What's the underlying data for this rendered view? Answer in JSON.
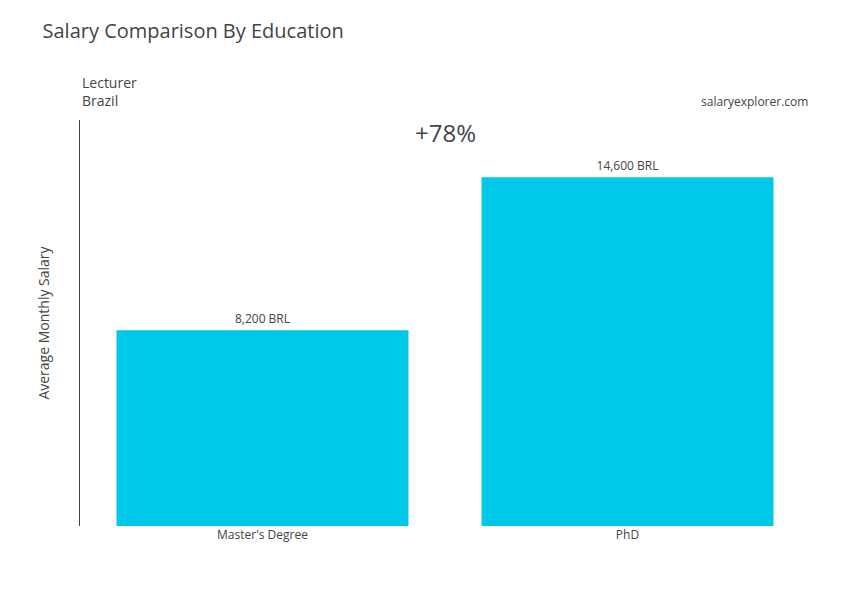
{
  "chart_data": {
    "type": "bar",
    "title": "Salary Comparison By Education",
    "subtitle": [
      "Lecturer",
      "Brazil"
    ],
    "ylabel": "Average Monthly Salary",
    "categories": [
      "Master's Degree",
      "PhD"
    ],
    "values": [
      8200,
      14600
    ],
    "value_labels": [
      "8,200 BRL",
      "14,600 BRL"
    ],
    "data_labels": true,
    "color": "#00C8E8",
    "ylim": [
      0,
      17000
    ],
    "tick_labels": "x",
    "grid": false,
    "annotations": [
      "+78%",
      "salaryexplorer.com"
    ]
  }
}
